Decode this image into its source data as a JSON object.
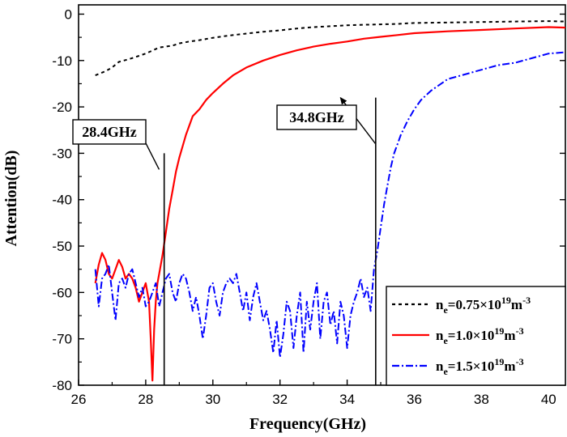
{
  "chart_data": {
    "type": "line",
    "title": "",
    "xlabel": "Frequency(GHz)",
    "ylabel": "Attention(dB)",
    "xlim": [
      26,
      40.5
    ],
    "ylim": [
      -80,
      2
    ],
    "x_ticks": [
      26,
      28,
      30,
      32,
      34,
      36,
      38,
      40
    ],
    "y_ticks": [
      0,
      -10,
      -20,
      -30,
      -40,
      -50,
      -60,
      -70,
      -80
    ],
    "legend_position": "bottom-right",
    "series": [
      {
        "name": "n_e=0.75×10^19 m^-3",
        "legend": {
          "main": "n",
          "sub": "e",
          "mid": "=0.75×10",
          "sup": "19",
          "unit": "m",
          "unitsup": "-3"
        },
        "color": "#000000",
        "style": "dashed",
        "x": [
          26.5,
          26.8,
          27.0,
          27.2,
          27.5,
          27.8,
          28.0,
          28.4,
          28.8,
          29.0,
          29.3,
          29.6,
          30.0,
          30.5,
          31.0,
          31.5,
          32.0,
          32.5,
          33.0,
          33.5,
          34.0,
          34.5,
          35.0,
          35.5,
          36.0,
          37.0,
          38.0,
          39.0,
          40.0,
          40.5
        ],
        "y": [
          -13.2,
          -12.3,
          -11.5,
          -10.3,
          -9.7,
          -9.0,
          -8.5,
          -7.2,
          -6.8,
          -6.3,
          -5.9,
          -5.6,
          -5.1,
          -4.6,
          -4.2,
          -3.8,
          -3.5,
          -3.1,
          -2.8,
          -2.6,
          -2.4,
          -2.3,
          -2.2,
          -2.1,
          -1.9,
          -1.8,
          -1.7,
          -1.6,
          -1.5,
          -1.6
        ]
      },
      {
        "name": "n_e=1.0×10^19 m^-3",
        "legend": {
          "main": "n",
          "sub": "e",
          "mid": "=1.0×10",
          "sup": "19",
          "unit": "m",
          "unitsup": "-3"
        },
        "color": "#ff0000",
        "style": "solid",
        "x": [
          26.5,
          26.6,
          26.7,
          26.8,
          26.9,
          27.0,
          27.1,
          27.2,
          27.3,
          27.4,
          27.5,
          27.6,
          27.7,
          27.8,
          27.9,
          28.0,
          28.1,
          28.15,
          28.2,
          28.25,
          28.3,
          28.35,
          28.4,
          28.5,
          28.6,
          28.7,
          28.8,
          28.9,
          29.0,
          29.2,
          29.4,
          29.6,
          29.8,
          30.0,
          30.3,
          30.6,
          31.0,
          31.5,
          32.0,
          32.5,
          33.0,
          33.5,
          34.0,
          34.5,
          35.0,
          35.5,
          36.0,
          37.0,
          38.0,
          39.0,
          40.0,
          40.5
        ],
        "y": [
          -58,
          -54,
          -51.5,
          -53,
          -56,
          -57,
          -55,
          -53,
          -54.5,
          -57,
          -56,
          -57,
          -59,
          -62,
          -60,
          -58,
          -62,
          -70,
          -79,
          -68,
          -62,
          -58,
          -56,
          -52,
          -47,
          -42,
          -38,
          -34,
          -31,
          -26,
          -22,
          -20.5,
          -18.5,
          -17,
          -15,
          -13.2,
          -11.5,
          -10,
          -8.8,
          -7.8,
          -7,
          -6.4,
          -5.9,
          -5.3,
          -4.9,
          -4.5,
          -4.1,
          -3.7,
          -3.4,
          -3.1,
          -2.8,
          -2.9
        ]
      },
      {
        "name": "n_e=1.5×10^19 m^-3",
        "legend": {
          "main": "n",
          "sub": "e",
          "mid": "=1.5×10",
          "sup": "19",
          "unit": "m",
          "unitsup": "-3"
        },
        "color": "#0000ff",
        "style": "dashdot",
        "x": [
          26.5,
          26.6,
          26.7,
          26.8,
          26.9,
          27.0,
          27.1,
          27.2,
          27.3,
          27.4,
          27.5,
          27.6,
          27.7,
          27.8,
          27.9,
          28.0,
          28.1,
          28.2,
          28.3,
          28.4,
          28.5,
          28.6,
          28.7,
          28.8,
          28.9,
          29.0,
          29.1,
          29.2,
          29.3,
          29.4,
          29.5,
          29.6,
          29.7,
          29.8,
          29.9,
          30.0,
          30.1,
          30.2,
          30.3,
          30.4,
          30.5,
          30.6,
          30.7,
          30.8,
          30.9,
          31.0,
          31.1,
          31.2,
          31.3,
          31.4,
          31.5,
          31.6,
          31.7,
          31.8,
          31.9,
          32.0,
          32.1,
          32.2,
          32.3,
          32.4,
          32.5,
          32.6,
          32.7,
          32.8,
          32.9,
          33.0,
          33.1,
          33.2,
          33.3,
          33.4,
          33.5,
          33.6,
          33.7,
          33.8,
          33.9,
          34.0,
          34.1,
          34.2,
          34.3,
          34.4,
          34.5,
          34.6,
          34.7,
          34.8,
          34.9,
          35.0,
          35.1,
          35.2,
          35.3,
          35.4,
          35.5,
          35.6,
          35.8,
          36.0,
          36.2,
          36.5,
          36.8,
          37.0,
          37.5,
          38.0,
          38.5,
          39.0,
          39.5,
          40.0,
          40.5
        ],
        "y": [
          -55,
          -63,
          -57,
          -56,
          -54,
          -60,
          -66,
          -58,
          -57,
          -59,
          -56,
          -55,
          -58,
          -61,
          -59,
          -63,
          -62,
          -60,
          -58,
          -63,
          -60,
          -57,
          -56,
          -60,
          -62,
          -58,
          -56,
          -57,
          -60,
          -64,
          -61,
          -65,
          -70,
          -65,
          -59,
          -58,
          -62,
          -65,
          -60,
          -58,
          -57,
          -58,
          -56,
          -60,
          -64,
          -60,
          -66,
          -61,
          -58,
          -62,
          -66,
          -64,
          -68,
          -73,
          -66,
          -74,
          -69,
          -62,
          -64,
          -72,
          -65,
          -60,
          -73,
          -62,
          -68,
          -62,
          -58,
          -70,
          -62,
          -60,
          -67,
          -64,
          -71,
          -62,
          -65,
          -72,
          -65,
          -62,
          -60,
          -57,
          -61,
          -59,
          -64,
          -55,
          -51,
          -46,
          -41,
          -37,
          -33,
          -30,
          -28,
          -26,
          -23,
          -20.5,
          -18.5,
          -16.5,
          -15,
          -14,
          -13,
          -12,
          -11,
          -10.5,
          -9.5,
          -8.5,
          -8.2
        ]
      }
    ],
    "annotations": [
      {
        "text": "28.4GHz",
        "line_x": 28.55,
        "arrow_from": [
          28.4,
          -33.5
        ],
        "arrow_to": [
          27.7,
          -23.5
        ]
      },
      {
        "text": "34.8GHz",
        "line_x": 34.85,
        "arrow_from": [
          34.85,
          -28
        ],
        "arrow_to": [
          33.8,
          -18
        ]
      }
    ]
  }
}
